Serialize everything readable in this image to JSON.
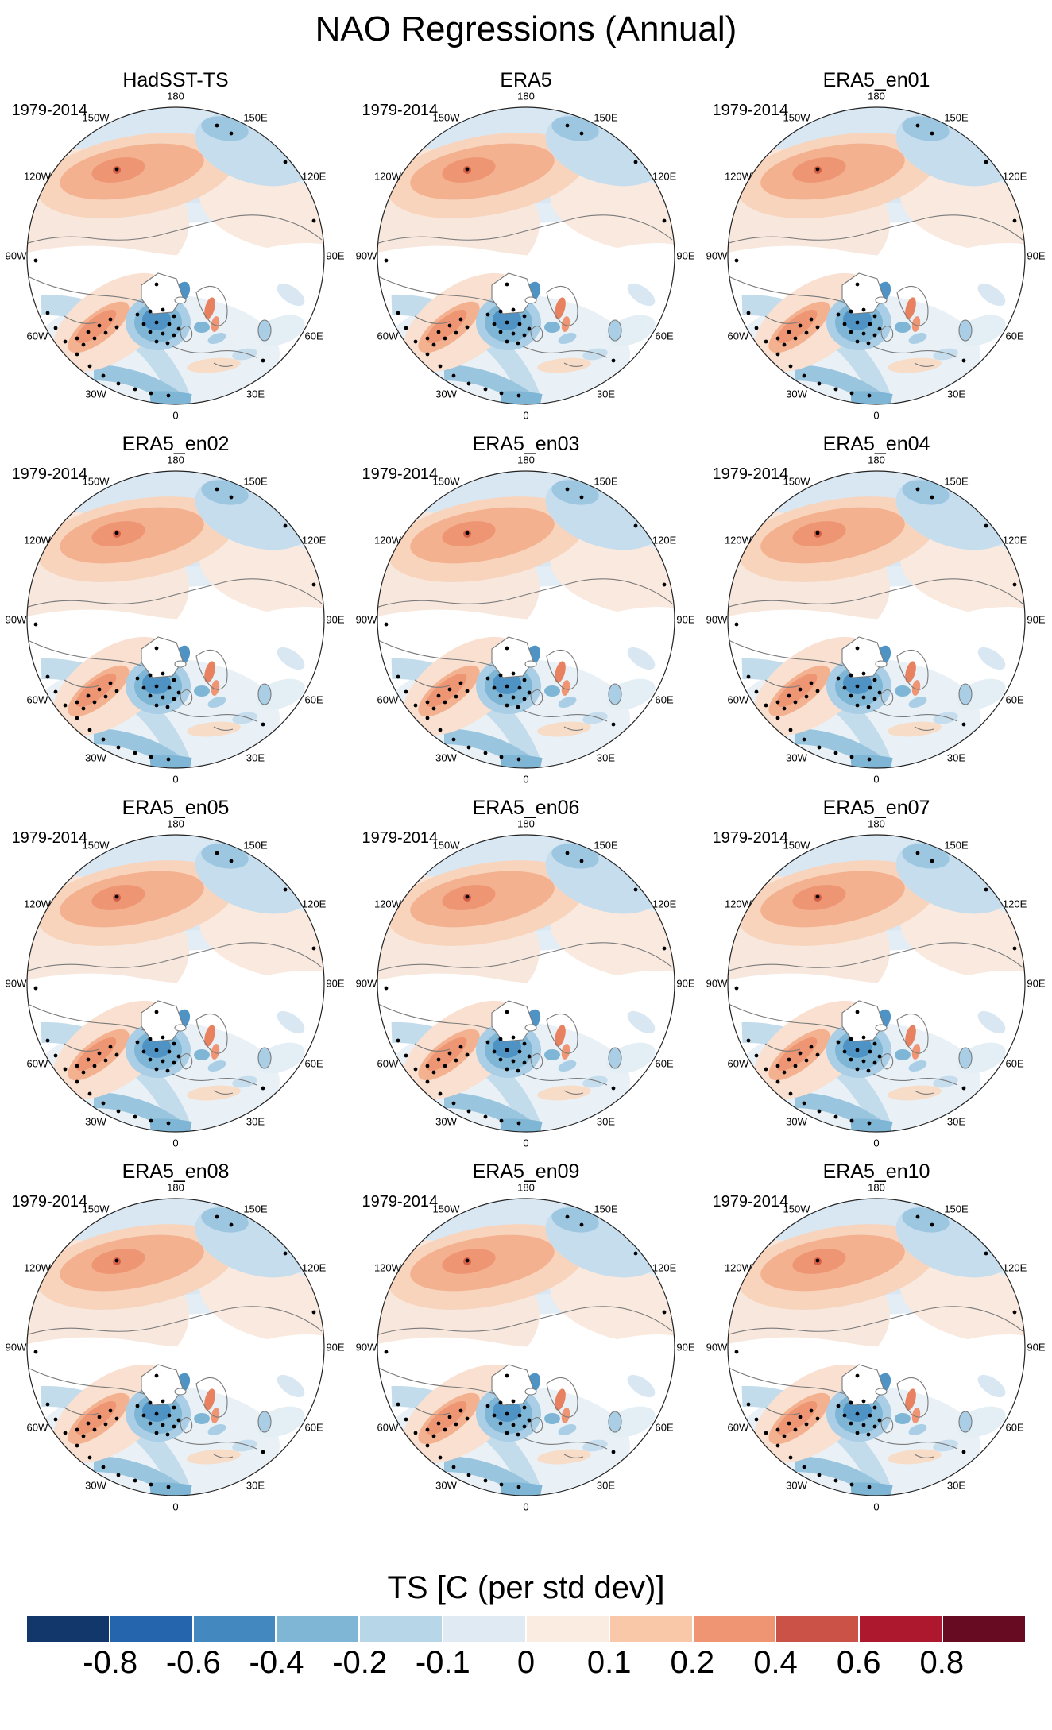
{
  "title": "NAO Regressions (Annual)",
  "labels": {
    "period": "1979-2014",
    "lon": [
      "180",
      "150W",
      "150E",
      "120W",
      "120E",
      "90W",
      "90E",
      "60W",
      "60E",
      "30W",
      "30E",
      "0"
    ]
  },
  "panels": [
    {
      "title": "HadSST-TS"
    },
    {
      "title": "ERA5"
    },
    {
      "title": "ERA5_en01"
    },
    {
      "title": "ERA5_en02"
    },
    {
      "title": "ERA5_en03"
    },
    {
      "title": "ERA5_en04"
    },
    {
      "title": "ERA5_en05"
    },
    {
      "title": "ERA5_en06"
    },
    {
      "title": "ERA5_en07"
    },
    {
      "title": "ERA5_en08"
    },
    {
      "title": "ERA5_en09"
    },
    {
      "title": "ERA5_en10"
    }
  ],
  "colorbar": {
    "title": "TS [C (per std dev)]",
    "ticks": [
      "-0.8",
      "-0.6",
      "-0.4",
      "-0.2",
      "-0.1",
      "0",
      "0.1",
      "0.2",
      "0.4",
      "0.6",
      "0.8"
    ],
    "colors": [
      "#12386b",
      "#2565ae",
      "#4389bf",
      "#7fb6d5",
      "#b7d7e8",
      "#dfeaf2",
      "#faece1",
      "#f8c8a8",
      "#ef9573",
      "#cb5246",
      "#ad182e",
      "#670b22"
    ]
  },
  "chart_data": {
    "type": "heatmap",
    "figure": "4x3 grid of north-polar-stereographic regression maps",
    "title": "NAO Regressions (Annual)",
    "period": "1979-2014",
    "panel_grid": [
      [
        "HadSST-TS",
        "ERA5",
        "ERA5_en01"
      ],
      [
        "ERA5_en02",
        "ERA5_en03",
        "ERA5_en04"
      ],
      [
        "ERA5_en05",
        "ERA5_en06",
        "ERA5_en07"
      ],
      [
        "ERA5_en08",
        "ERA5_en09",
        "ERA5_en10"
      ]
    ],
    "projection": {
      "type": "north-polar-stereographic",
      "top_longitude": "180",
      "bottom_longitude": "0",
      "longitude_labels_clockwise_from_top": [
        "180",
        "150E",
        "120E",
        "90E",
        "60E",
        "30E",
        "0",
        "30W",
        "60W",
        "90W",
        "120W",
        "150W"
      ]
    },
    "colorbar": {
      "label": "TS [C (per std dev)]",
      "levels": [
        -0.8,
        -0.6,
        -0.4,
        -0.2,
        -0.1,
        0,
        0.1,
        0.2,
        0.4,
        0.6,
        0.8
      ],
      "colors": [
        "#12386b",
        "#2565ae",
        "#4389bf",
        "#7fb6d5",
        "#b7d7e8",
        "#dfeaf2",
        "#faece1",
        "#f8c8a8",
        "#ef9573",
        "#cb5246",
        "#ad182e",
        "#670b22"
      ]
    },
    "features": [
      {
        "region": "subpolar North Atlantic south of Greenland",
        "value_range": [
          -0.6,
          -0.2
        ],
        "stippled_significant": true
      },
      {
        "region": "western subtropical North Atlantic off North America",
        "value_range": [
          0.1,
          0.4
        ],
        "stippled_significant": true
      },
      {
        "region": "southwestern rim band near 30W-60W edge",
        "value_range": [
          -0.2,
          -0.1
        ],
        "stippled_significant": true
      },
      {
        "region": "central North Pacific band",
        "value_range": [
          0.1,
          0.2
        ],
        "stippled_significant": false
      },
      {
        "region": "Bering Sea / northern Pacific rim",
        "value_range": [
          -0.2,
          -0.1
        ],
        "stippled_significant": false
      },
      {
        "region": "Scandinavia / Baltic patches",
        "value_range": [
          0.2,
          0.4
        ],
        "stippled_significant": false
      },
      {
        "region": "continental interiors (North America, central Eurasia)",
        "value_range": [
          -0.1,
          0.1
        ],
        "stippled_significant": false
      }
    ],
    "note": "All 12 panels share the same qualitative NAO regression pattern with minor ensemble-member differences; black dots mark statistically significant stippling."
  }
}
